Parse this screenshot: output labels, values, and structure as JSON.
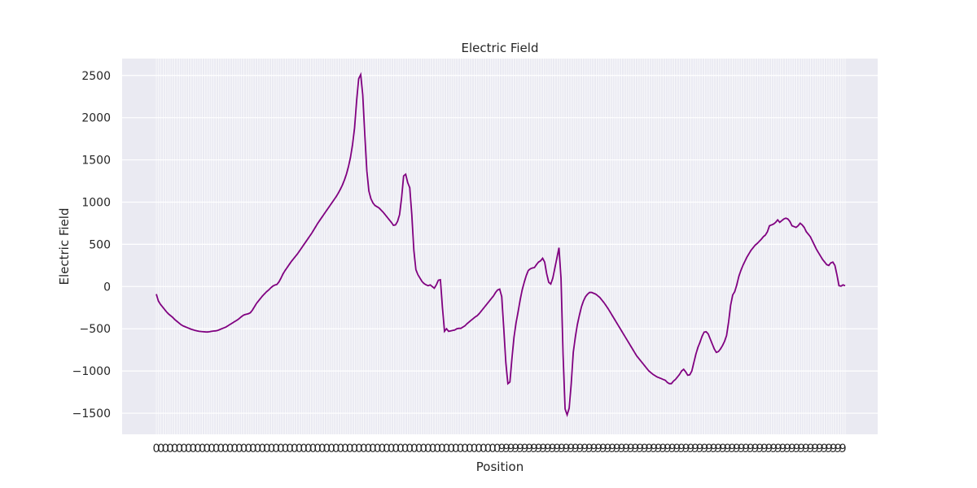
{
  "chart_data": {
    "type": "line",
    "title": "Electric Field",
    "xlabel": "Position",
    "ylabel": "Electric Field",
    "ylim": [
      -1750,
      2700
    ],
    "yticks": [
      -1500,
      -1000,
      -500,
      0,
      500,
      1000,
      1500,
      2000,
      2500
    ],
    "grid": true,
    "legend": "none",
    "colors": {
      "line": "#800080",
      "plot_bg": "#eaeaf2",
      "grid": "#ffffff"
    },
    "x_tick_count": 300,
    "x_tick_labels_visible": [
      "0",
      "9"
    ],
    "series": [
      {
        "values": [
          -90,
          -170,
          -210,
          -240,
          -270,
          -300,
          -325,
          -345,
          -365,
          -390,
          -410,
          -430,
          -450,
          -465,
          -475,
          -485,
          -495,
          -505,
          -512,
          -520,
          -525,
          -530,
          -533,
          -535,
          -537,
          -538,
          -535,
          -530,
          -527,
          -525,
          -520,
          -510,
          -500,
          -490,
          -480,
          -465,
          -450,
          -435,
          -420,
          -405,
          -390,
          -370,
          -350,
          -335,
          -328,
          -322,
          -310,
          -280,
          -240,
          -200,
          -170,
          -140,
          -110,
          -85,
          -60,
          -40,
          -15,
          5,
          18,
          25,
          55,
          100,
          150,
          190,
          225,
          260,
          295,
          325,
          355,
          385,
          420,
          455,
          490,
          525,
          560,
          595,
          630,
          670,
          710,
          750,
          785,
          820,
          855,
          890,
          925,
          960,
          995,
          1030,
          1065,
          1105,
          1150,
          1200,
          1260,
          1330,
          1420,
          1530,
          1680,
          1880,
          2200,
          2460,
          2510,
          2270,
          1800,
          1370,
          1130,
          1040,
          990,
          960,
          945,
          930,
          905,
          880,
          850,
          820,
          790,
          760,
          725,
          730,
          770,
          850,
          1050,
          1310,
          1330,
          1230,
          1170,
          850,
          430,
          200,
          140,
          100,
          60,
          35,
          20,
          10,
          20,
          0,
          -20,
          20,
          75,
          80,
          -250,
          -530,
          -500,
          -530,
          -525,
          -520,
          -515,
          -500,
          -495,
          -495,
          -480,
          -465,
          -440,
          -420,
          -400,
          -380,
          -360,
          -345,
          -320,
          -290,
          -260,
          -230,
          -200,
          -170,
          -140,
          -110,
          -70,
          -40,
          -30,
          -120,
          -500,
          -900,
          -1150,
          -1130,
          -850,
          -600,
          -430,
          -300,
          -160,
          -40,
          50,
          130,
          190,
          210,
          220,
          225,
          260,
          290,
          305,
          335,
          290,
          150,
          50,
          30,
          100,
          220,
          340,
          460,
          100,
          -800,
          -1450,
          -1520,
          -1440,
          -1150,
          -780,
          -600,
          -450,
          -340,
          -240,
          -170,
          -120,
          -90,
          -70,
          -70,
          -80,
          -90,
          -110,
          -130,
          -160,
          -190,
          -225,
          -260,
          -300,
          -340,
          -380,
          -420,
          -460,
          -500,
          -540,
          -580,
          -620,
          -660,
          -700,
          -740,
          -780,
          -820,
          -850,
          -880,
          -910,
          -940,
          -970,
          -1000,
          -1020,
          -1040,
          -1055,
          -1070,
          -1080,
          -1090,
          -1100,
          -1110,
          -1135,
          -1150,
          -1150,
          -1120,
          -1100,
          -1070,
          -1040,
          -1000,
          -980,
          -1010,
          -1050,
          -1045,
          -1000,
          -900,
          -800,
          -720,
          -660,
          -590,
          -540,
          -535,
          -560,
          -620,
          -680,
          -740,
          -780,
          -770,
          -740,
          -700,
          -650,
          -580,
          -420,
          -220,
          -100,
          -60,
          20,
          120,
          190,
          250,
          300,
          350,
          390,
          430,
          460,
          490,
          510,
          535,
          560,
          590,
          610,
          650,
          720,
          730,
          740,
          760,
          790,
          760,
          780,
          800,
          810,
          800,
          770,
          720,
          710,
          700,
          720,
          750,
          730,
          700,
          650,
          620,
          590,
          540,
          490,
          440,
          400,
          360,
          320,
          290,
          260,
          250,
          280,
          290,
          250,
          140,
          10,
          5,
          20,
          10
        ]
      }
    ]
  }
}
